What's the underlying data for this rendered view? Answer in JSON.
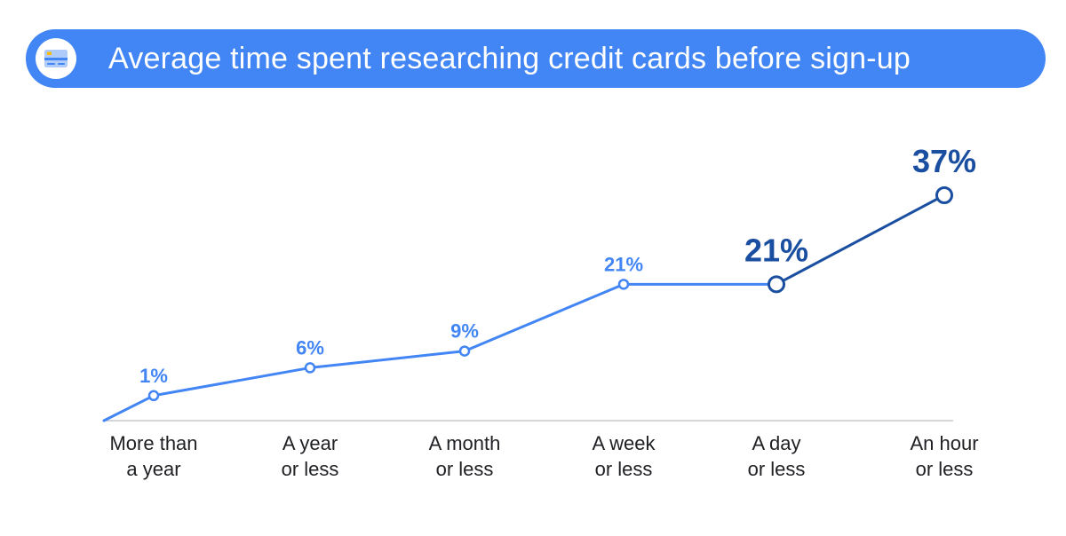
{
  "header": {
    "title": "Average time spent researching credit cards before sign-up",
    "icon": "credit-card-icon"
  },
  "colors": {
    "accent": "#4285f4",
    "highlight": "#1a4ea0",
    "axis": "#bdbdbd",
    "label": "#202124"
  },
  "chart_data": {
    "type": "line",
    "title": "Average time spent researching credit cards before sign-up",
    "categories": [
      [
        "More than",
        "a year"
      ],
      [
        "A year",
        "or less"
      ],
      [
        "A month",
        "or less"
      ],
      [
        "A week",
        "or less"
      ],
      [
        "A day",
        "or less"
      ],
      [
        "An hour",
        "or less"
      ]
    ],
    "values": [
      1,
      6,
      9,
      21,
      21,
      37
    ],
    "data_labels": [
      "1%",
      "6%",
      "9%",
      "21%",
      "21%",
      "37%"
    ],
    "highlighted": [
      false,
      false,
      false,
      false,
      true,
      true
    ],
    "origin_value": -3.5,
    "unit": "%",
    "ylim": [
      -3.5,
      37
    ],
    "grid": false,
    "legend": "none",
    "xlabel": "",
    "ylabel": ""
  }
}
